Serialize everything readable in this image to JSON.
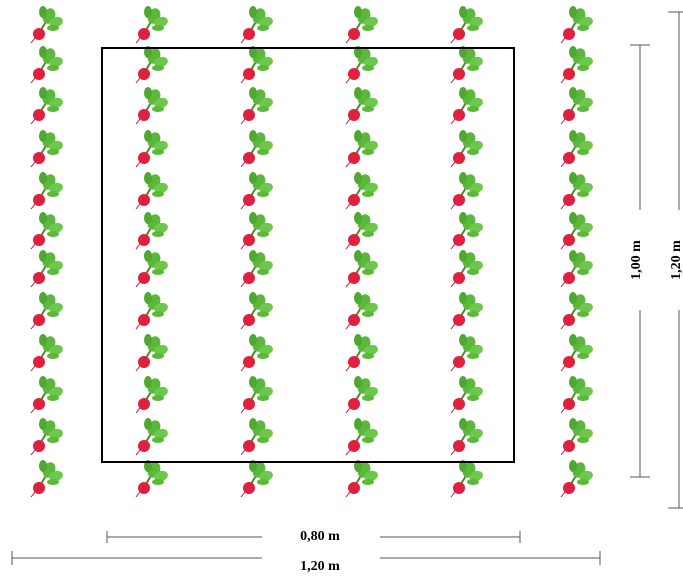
{
  "dimensions": {
    "inner_width": "0,80 m",
    "outer_width": "1,20 m",
    "inner_height": "1,00 m",
    "outer_height": "1,20 m"
  }
}
